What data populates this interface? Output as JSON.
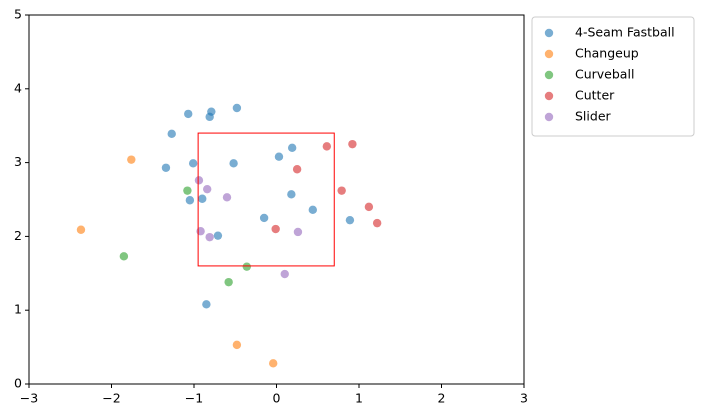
{
  "chart_data": {
    "type": "scatter",
    "xlim": [
      -3,
      3
    ],
    "xticks": [
      {
        "value": -3,
        "label": "−3"
      },
      {
        "value": -2,
        "label": "−2"
      },
      {
        "value": -1,
        "label": "−1"
      },
      0,
      1,
      2,
      3
    ],
    "ylim": [
      0,
      5
    ],
    "yticks": [
      0,
      1,
      2,
      3,
      4,
      5
    ],
    "grid": false,
    "legend": "outside upper left",
    "strike_zone": {
      "x": [
        -0.95,
        0.7
      ],
      "y": [
        1.6,
        3.4
      ],
      "color": "#ff0000"
    },
    "series": [
      {
        "name": "4-Seam Fastball",
        "color": "#1f77b4",
        "x": [
          -1.07,
          -0.79,
          -0.81,
          -0.48,
          -1.27,
          -1.34,
          -1.01,
          -0.52,
          0.03,
          0.19,
          0.18,
          -1.05,
          -0.9,
          -0.15,
          0.44,
          0.89,
          -0.71,
          -0.85
        ],
        "values": [
          3.66,
          3.69,
          3.62,
          3.74,
          3.39,
          2.93,
          2.99,
          2.99,
          3.08,
          3.2,
          2.57,
          2.49,
          2.51,
          2.25,
          2.36,
          2.22,
          2.01,
          1.08
        ]
      },
      {
        "name": "Changeup",
        "color": "#ff7f0e",
        "x": [
          -1.76,
          -2.37,
          -0.48,
          -0.04
        ],
        "values": [
          3.04,
          2.09,
          0.53,
          0.28
        ]
      },
      {
        "name": "Curveball",
        "color": "#2ca02c",
        "x": [
          -1.08,
          -1.85,
          -0.36,
          -0.58
        ],
        "values": [
          2.62,
          1.73,
          1.59,
          1.38
        ]
      },
      {
        "name": "Cutter",
        "color": "#d62728",
        "x": [
          0.61,
          0.92,
          0.25,
          0.79,
          1.12,
          1.22,
          -0.01
        ],
        "values": [
          3.22,
          3.25,
          2.91,
          2.62,
          2.4,
          2.18,
          2.1
        ]
      },
      {
        "name": "Slider",
        "color": "#9467bd",
        "x": [
          -0.94,
          -0.84,
          -0.6,
          -0.92,
          -0.81,
          0.26,
          0.1
        ],
        "values": [
          2.76,
          2.64,
          2.53,
          2.07,
          1.99,
          2.06,
          1.49
        ]
      }
    ]
  }
}
